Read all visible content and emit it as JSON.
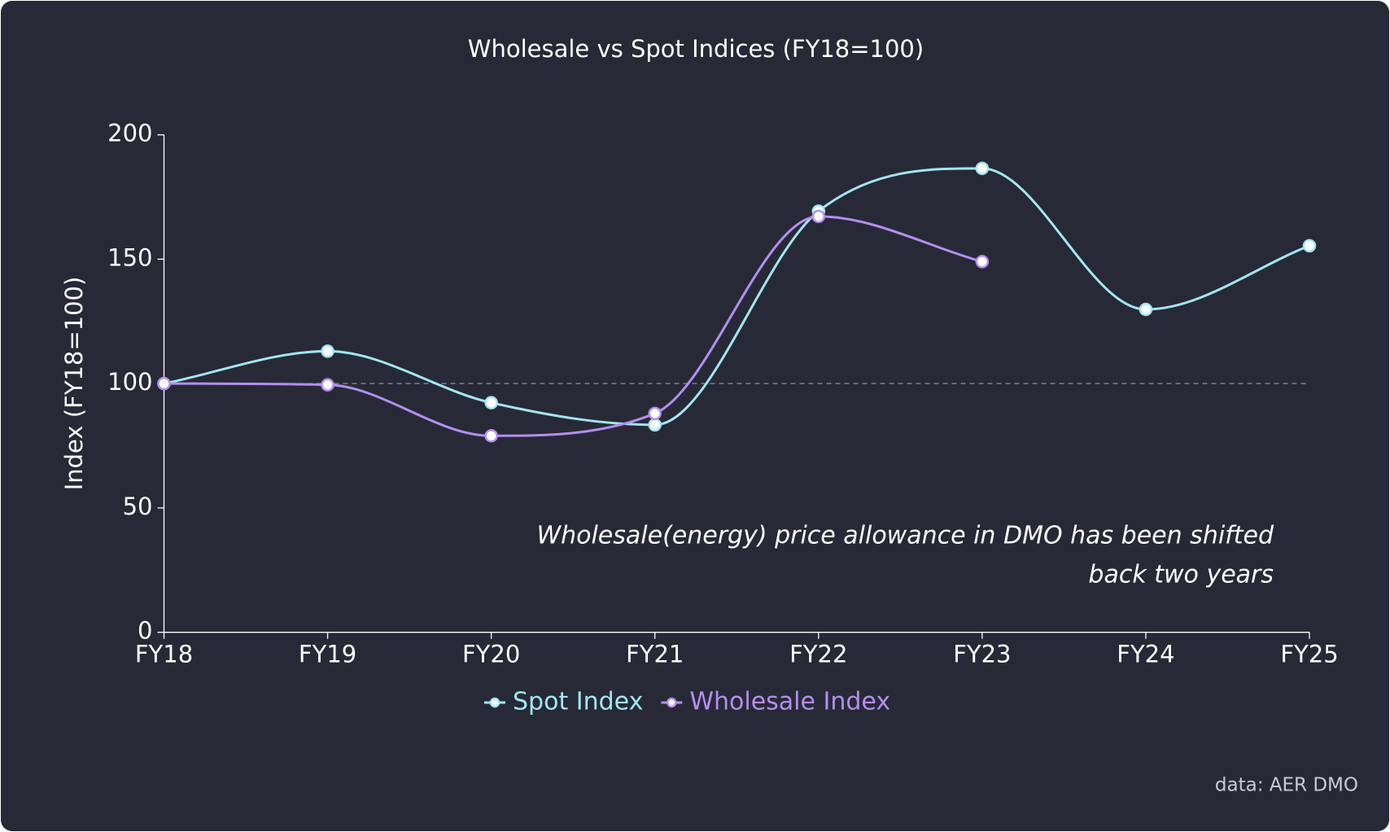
{
  "chart_data": {
    "type": "line",
    "title": "Wholesale vs Spot Indices (FY18=100)",
    "y_label": "Index (FY18=100)",
    "categories": [
      "FY18",
      "FY19",
      "FY20",
      "FY21",
      "FY22",
      "FY23",
      "FY24",
      "FY25"
    ],
    "series": [
      {
        "name": "Spot Index",
        "color": "#a3e6f2",
        "values": [
          100,
          113,
          92.3,
          83.4,
          169.3,
          186.5,
          129.8,
          155.4
        ]
      },
      {
        "name": "Wholesale Index",
        "color": "#b48ef0",
        "values": [
          100,
          99.5,
          79,
          88,
          167.2,
          149,
          null,
          null
        ]
      }
    ],
    "ylim": [
      0,
      200
    ],
    "yticks": [
      0,
      50,
      100,
      150,
      200
    ],
    "reference_line": 100,
    "annotation": [
      "Wholesale(energy) price allowance in DMO has been shifted",
      "back two years"
    ],
    "source": "data: AER DMO"
  }
}
